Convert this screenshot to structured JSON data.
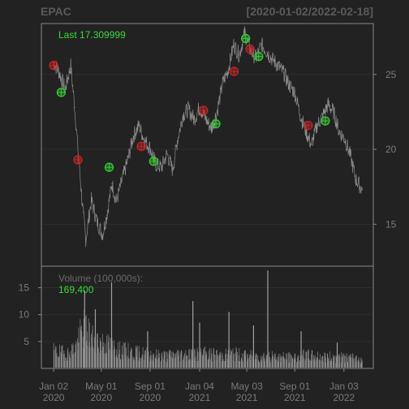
{
  "chart_data": {
    "type": "line",
    "title": {
      "symbol": "EPAC",
      "range": "[2020-01-02/2022-02-18]"
    },
    "colors": {
      "background": "#222222",
      "frame": "#888888",
      "price": "#8c8c8c",
      "volume": "#8a8a8a",
      "text": "#33dd33",
      "buy_marker": "#33cc33",
      "sell_marker": "#cc2222"
    },
    "price_panel": {
      "last_label": "Last 17.309999",
      "ylim": [
        12.2,
        28.4
      ],
      "yticks": [
        "15",
        "20",
        "25"
      ],
      "series": [
        {
          "x": "2020-01-02",
          "y": 25.8
        },
        {
          "x": "2020-01-15",
          "y": 25.2
        },
        {
          "x": "2020-01-31",
          "y": 24.0
        },
        {
          "x": "2020-02-14",
          "y": 25.6
        },
        {
          "x": "2020-02-24",
          "y": 22.8
        },
        {
          "x": "2020-03-05",
          "y": 19.4
        },
        {
          "x": "2020-03-16",
          "y": 15.8
        },
        {
          "x": "2020-03-23",
          "y": 14.0
        },
        {
          "x": "2020-04-06",
          "y": 16.6
        },
        {
          "x": "2020-04-20",
          "y": 15.2
        },
        {
          "x": "2020-05-04",
          "y": 14.3
        },
        {
          "x": "2020-05-15",
          "y": 15.6
        },
        {
          "x": "2020-05-28",
          "y": 17.7
        },
        {
          "x": "2020-06-08",
          "y": 16.5
        },
        {
          "x": "2020-06-22",
          "y": 17.9
        },
        {
          "x": "2020-07-07",
          "y": 19.3
        },
        {
          "x": "2020-07-21",
          "y": 20.9
        },
        {
          "x": "2020-08-04",
          "y": 21.6
        },
        {
          "x": "2020-08-18",
          "y": 20.6
        },
        {
          "x": "2020-09-01",
          "y": 20.1
        },
        {
          "x": "2020-09-15",
          "y": 19.0
        },
        {
          "x": "2020-09-30",
          "y": 18.8
        },
        {
          "x": "2020-10-14",
          "y": 19.7
        },
        {
          "x": "2020-10-28",
          "y": 18.6
        },
        {
          "x": "2020-11-09",
          "y": 20.6
        },
        {
          "x": "2020-11-23",
          "y": 22.3
        },
        {
          "x": "2020-12-07",
          "y": 22.7
        },
        {
          "x": "2020-12-21",
          "y": 22.0
        },
        {
          "x": "2021-01-04",
          "y": 22.8
        },
        {
          "x": "2021-01-20",
          "y": 22.0
        },
        {
          "x": "2021-02-03",
          "y": 21.4
        },
        {
          "x": "2021-02-17",
          "y": 22.5
        },
        {
          "x": "2021-03-03",
          "y": 24.4
        },
        {
          "x": "2021-03-17",
          "y": 25.3
        },
        {
          "x": "2021-03-31",
          "y": 27.0
        },
        {
          "x": "2021-04-14",
          "y": 26.3
        },
        {
          "x": "2021-04-28",
          "y": 27.8
        },
        {
          "x": "2021-05-12",
          "y": 26.6
        },
        {
          "x": "2021-05-26",
          "y": 26.1
        },
        {
          "x": "2021-06-09",
          "y": 27.0
        },
        {
          "x": "2021-06-23",
          "y": 26.5
        },
        {
          "x": "2021-07-07",
          "y": 26.0
        },
        {
          "x": "2021-07-21",
          "y": 25.6
        },
        {
          "x": "2021-08-04",
          "y": 25.1
        },
        {
          "x": "2021-08-18",
          "y": 24.3
        },
        {
          "x": "2021-09-01",
          "y": 23.8
        },
        {
          "x": "2021-09-15",
          "y": 22.3
        },
        {
          "x": "2021-09-29",
          "y": 21.2
        },
        {
          "x": "2021-10-13",
          "y": 20.3
        },
        {
          "x": "2021-10-27",
          "y": 21.6
        },
        {
          "x": "2021-11-10",
          "y": 22.2
        },
        {
          "x": "2021-11-24",
          "y": 23.0
        },
        {
          "x": "2021-12-08",
          "y": 22.5
        },
        {
          "x": "2021-12-22",
          "y": 21.2
        },
        {
          "x": "2022-01-05",
          "y": 20.7
        },
        {
          "x": "2022-01-19",
          "y": 19.6
        },
        {
          "x": "2022-02-02",
          "y": 18.0
        },
        {
          "x": "2022-02-18",
          "y": 17.3
        }
      ],
      "sell_markers": [
        {
          "x": "2020-01-02",
          "y": 25.6
        },
        {
          "x": "2020-03-03",
          "y": 19.3
        },
        {
          "x": "2020-08-10",
          "y": 20.2
        },
        {
          "x": "2021-01-14",
          "y": 22.6
        },
        {
          "x": "2021-04-01",
          "y": 25.2
        },
        {
          "x": "2021-05-11",
          "y": 26.7
        },
        {
          "x": "2021-10-05",
          "y": 21.6
        }
      ],
      "buy_markers": [
        {
          "x": "2020-01-21",
          "y": 23.8
        },
        {
          "x": "2020-05-21",
          "y": 18.8
        },
        {
          "x": "2020-09-10",
          "y": 19.2
        },
        {
          "x": "2021-02-14",
          "y": 21.7
        },
        {
          "x": "2021-04-30",
          "y": 27.4
        },
        {
          "x": "2021-06-02",
          "y": 26.2
        },
        {
          "x": "2021-11-17",
          "y": 21.9
        }
      ]
    },
    "volume_panel": {
      "label": "Volume (100,000s):",
      "last_value": "169,400",
      "unit": "100,000s",
      "ylim": [
        0,
        19
      ],
      "yticks": [
        "5",
        "10",
        "15"
      ],
      "series": [
        {
          "x": "2020-01-02",
          "y": 3.0
        },
        {
          "x": "2020-01-21",
          "y": 2.8
        },
        {
          "x": "2020-02-10",
          "y": 2.6
        },
        {
          "x": "2020-02-28",
          "y": 4.1
        },
        {
          "x": "2020-03-10",
          "y": 6.0
        },
        {
          "x": "2020-03-20",
          "y": 7.2
        },
        {
          "x": "2020-04-06",
          "y": 5.5
        },
        {
          "x": "2020-04-24",
          "y": 4.8
        },
        {
          "x": "2020-05-12",
          "y": 4.3
        },
        {
          "x": "2020-06-01",
          "y": 3.8
        },
        {
          "x": "2020-06-19",
          "y": 3.1
        },
        {
          "x": "2020-07-07",
          "y": 3.0
        },
        {
          "x": "2020-07-27",
          "y": 2.7
        },
        {
          "x": "2020-08-14",
          "y": 2.6
        },
        {
          "x": "2020-09-02",
          "y": 2.5
        },
        {
          "x": "2020-09-22",
          "y": 2.3
        },
        {
          "x": "2020-10-12",
          "y": 2.2
        },
        {
          "x": "2020-10-30",
          "y": 2.4
        },
        {
          "x": "2020-11-18",
          "y": 2.5
        },
        {
          "x": "2020-12-08",
          "y": 2.6
        },
        {
          "x": "2020-12-28",
          "y": 2.4
        },
        {
          "x": "2021-01-15",
          "y": 2.6
        },
        {
          "x": "2021-02-03",
          "y": 2.5
        },
        {
          "x": "2021-02-23",
          "y": 2.3
        },
        {
          "x": "2021-03-15",
          "y": 2.4
        },
        {
          "x": "2021-04-02",
          "y": 2.6
        },
        {
          "x": "2021-04-22",
          "y": 2.3
        },
        {
          "x": "2021-05-12",
          "y": 2.2
        },
        {
          "x": "2021-06-01",
          "y": 2.1
        },
        {
          "x": "2021-06-21",
          "y": 2.2
        },
        {
          "x": "2021-07-09",
          "y": 2.0
        },
        {
          "x": "2021-07-29",
          "y": 2.0
        },
        {
          "x": "2021-08-17",
          "y": 1.9
        },
        {
          "x": "2021-09-07",
          "y": 2.0
        },
        {
          "x": "2021-09-27",
          "y": 2.3
        },
        {
          "x": "2021-10-15",
          "y": 2.2
        },
        {
          "x": "2021-11-04",
          "y": 2.1
        },
        {
          "x": "2021-11-24",
          "y": 2.0
        },
        {
          "x": "2021-12-14",
          "y": 2.0
        },
        {
          "x": "2022-01-04",
          "y": 1.9
        },
        {
          "x": "2022-01-24",
          "y": 1.8
        },
        {
          "x": "2022-02-18",
          "y": 1.7
        }
      ],
      "spikes": [
        {
          "x": "2020-03-20",
          "y": 14.5
        },
        {
          "x": "2020-04-16",
          "y": 11.0
        },
        {
          "x": "2020-05-27",
          "y": 16.0
        },
        {
          "x": "2020-08-26",
          "y": 6.9
        },
        {
          "x": "2020-12-18",
          "y": 12.5
        },
        {
          "x": "2021-01-04",
          "y": 8.5
        },
        {
          "x": "2021-03-19",
          "y": 10.5
        },
        {
          "x": "2021-05-20",
          "y": 8.0
        },
        {
          "x": "2021-06-25",
          "y": 18.2
        },
        {
          "x": "2021-09-17",
          "y": 6.9
        },
        {
          "x": "2021-12-17",
          "y": 4.8
        }
      ]
    },
    "x_axis": {
      "range": [
        "2019-12-02",
        "2022-03-18"
      ],
      "ticks": [
        {
          "date": "2020-01-02",
          "label": "Jan 02",
          "year": "2020"
        },
        {
          "date": "2020-05-01",
          "label": "May 01",
          "year": "2020"
        },
        {
          "date": "2020-09-01",
          "label": "Sep 01",
          "year": "2020"
        },
        {
          "date": "2021-01-04",
          "label": "Jan 04",
          "year": "2021"
        },
        {
          "date": "2021-05-03",
          "label": "May 03",
          "year": "2021"
        },
        {
          "date": "2021-09-01",
          "label": "Sep 01",
          "year": "2021"
        },
        {
          "date": "2022-01-03",
          "label": "Jan 03",
          "year": "2022"
        }
      ]
    }
  }
}
